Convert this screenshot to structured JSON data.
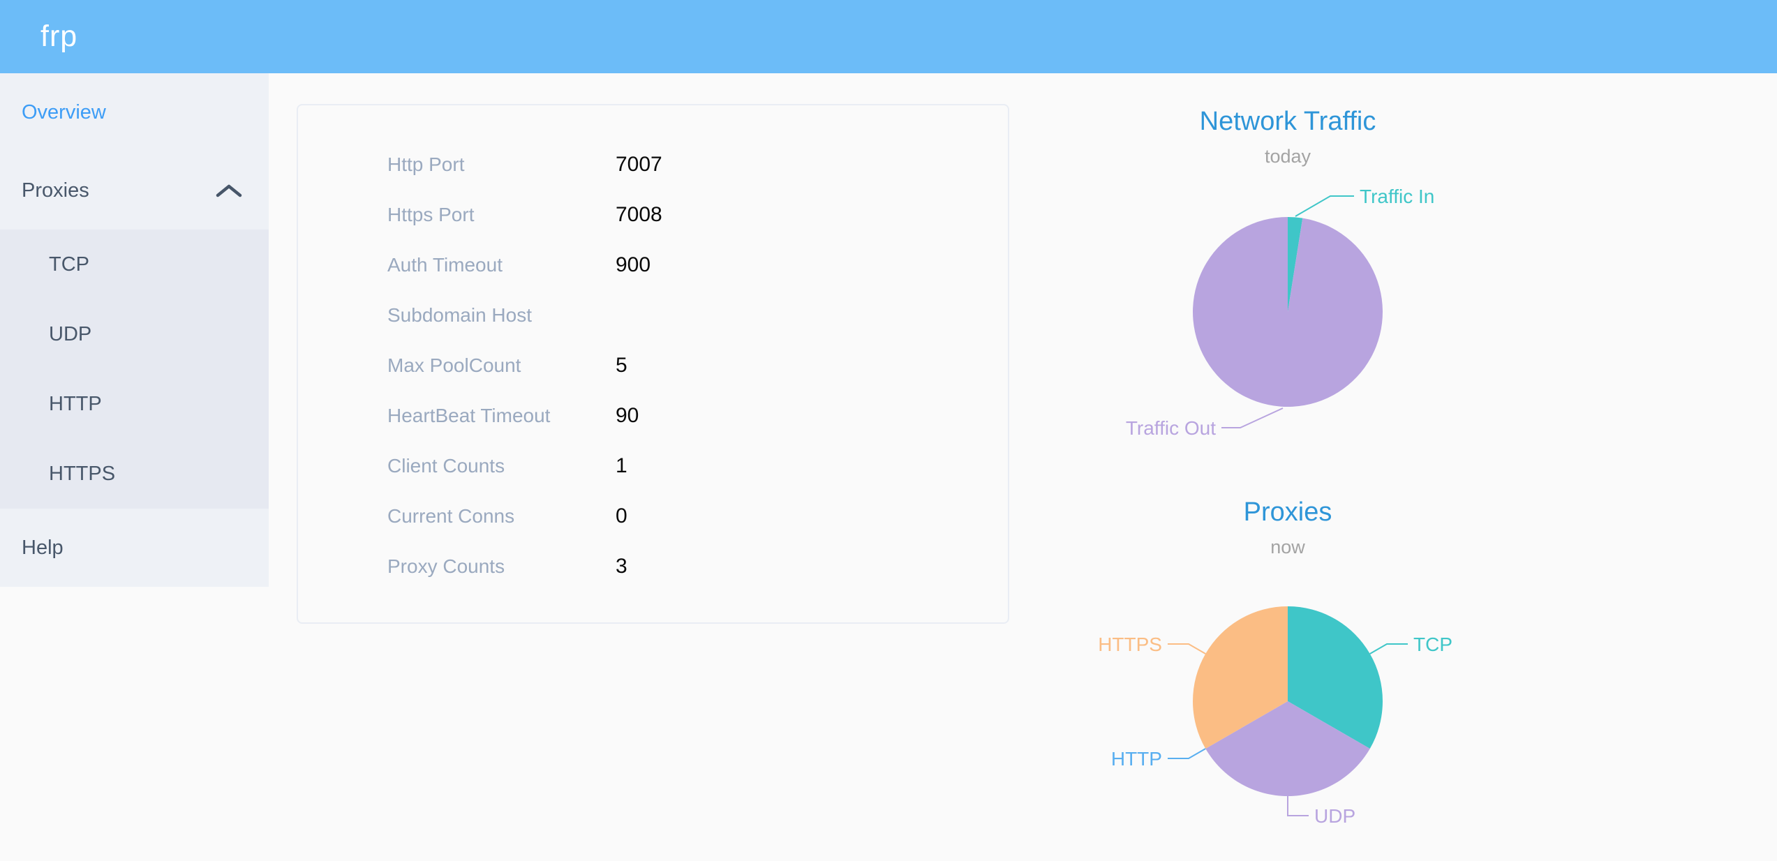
{
  "header": {
    "logo": "frp"
  },
  "sidebar": {
    "items": [
      {
        "label": "Overview",
        "active": true
      },
      {
        "label": "Proxies",
        "expanded": true,
        "icon": "chevron-up-icon"
      },
      {
        "label": "TCP",
        "submenu_of": "Proxies"
      },
      {
        "label": "UDP",
        "submenu_of": "Proxies"
      },
      {
        "label": "HTTP",
        "submenu_of": "Proxies"
      },
      {
        "label": "HTTPS",
        "submenu_of": "Proxies"
      },
      {
        "label": "Help"
      }
    ]
  },
  "server_info": {
    "rows": [
      {
        "label": "Http Port",
        "value": "7007"
      },
      {
        "label": "Https Port",
        "value": "7008"
      },
      {
        "label": "Auth Timeout",
        "value": "900"
      },
      {
        "label": "Subdomain Host",
        "value": ""
      },
      {
        "label": "Max PoolCount",
        "value": "5"
      },
      {
        "label": "HeartBeat Timeout",
        "value": "90"
      },
      {
        "label": "Client Counts",
        "value": "1"
      },
      {
        "label": "Current Conns",
        "value": "0"
      },
      {
        "label": "Proxy Counts",
        "value": "3"
      }
    ]
  },
  "chart_data": [
    {
      "type": "pie",
      "title": "Network Traffic",
      "subtitle": "today",
      "legend_position": "none",
      "values_note": "percent of pie, estimated from arc angles; absolute byte values not shown",
      "series": [
        {
          "name": "Traffic In",
          "value": 2.5,
          "color": "#3fc6c8"
        },
        {
          "name": "Traffic Out",
          "value": 97.5,
          "color": "#b8a4df"
        }
      ]
    },
    {
      "type": "pie",
      "title": "Proxies",
      "subtitle": "now",
      "legend_position": "none",
      "values_note": "proxy counts per type; total matches Proxy Counts = 3 (HTTP slice is zero)",
      "series": [
        {
          "name": "TCP",
          "value": 1,
          "color": "#3fc6c8"
        },
        {
          "name": "UDP",
          "value": 1,
          "color": "#b8a4df"
        },
        {
          "name": "HTTP",
          "value": 0,
          "color": "#58aef0"
        },
        {
          "name": "HTTPS",
          "value": 1,
          "color": "#fbbd84"
        }
      ]
    }
  ],
  "colors": {
    "header_blue": "#6cbcf8",
    "active_menu_blue": "#3d9df6",
    "menu_text": "#48576a",
    "sidebar_bg": "#eef1f6",
    "submenu_bg": "#e6e9f1",
    "page_bg": "#fafafa",
    "card_border": "#e9edf4",
    "label_gray": "#9aa9bf",
    "value_black": "#0a0a0a",
    "chart_title_blue": "#2e95d8",
    "chart_subtitle_gray": "#a3a3a3"
  }
}
